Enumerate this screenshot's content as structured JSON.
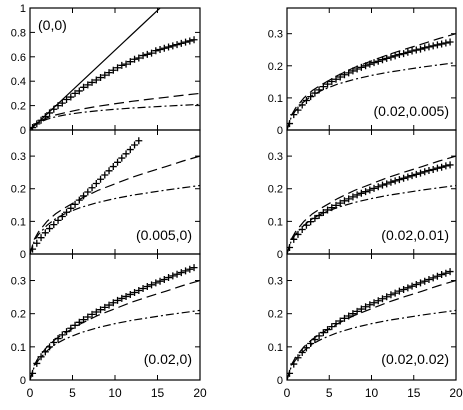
{
  "chart_data": [
    {
      "type": "line",
      "annotation": "(0,0)",
      "xlim": [
        0,
        20
      ],
      "ylim": [
        0,
        1.0
      ],
      "yticks": [
        0,
        0.2,
        0.4,
        0.6,
        0.8,
        1
      ],
      "ytick_labels": [
        "0",
        "0.2",
        "0.4",
        "0.6",
        "0.8",
        "1"
      ],
      "xticks": [
        0,
        5,
        10,
        15,
        20
      ],
      "xtick_labels": [],
      "series": [
        {
          "style": "solid",
          "x": [
            0,
            15.3
          ],
          "y": [
            0,
            1.0
          ]
        },
        {
          "style": "plus",
          "x": [
            0.3,
            0.8,
            1.3,
            1.8,
            2.3,
            2.8,
            3.3,
            3.8,
            4.3,
            4.8,
            5.3,
            5.8,
            6.3,
            6.8,
            7.3,
            7.8,
            8.3,
            8.8,
            9.3,
            9.8,
            10.3,
            10.8,
            11.3,
            11.8,
            12.3,
            12.8,
            13.3,
            13.8,
            14.3,
            14.8,
            15.3,
            15.8,
            16.3,
            16.8,
            17.3,
            17.8,
            18.3,
            18.8,
            19.3
          ],
          "y": [
            0.02,
            0.05,
            0.08,
            0.11,
            0.14,
            0.17,
            0.2,
            0.22,
            0.25,
            0.27,
            0.3,
            0.32,
            0.35,
            0.37,
            0.39,
            0.41,
            0.43,
            0.45,
            0.47,
            0.49,
            0.51,
            0.53,
            0.54,
            0.56,
            0.58,
            0.59,
            0.61,
            0.62,
            0.63,
            0.65,
            0.66,
            0.67,
            0.68,
            0.69,
            0.7,
            0.71,
            0.72,
            0.73,
            0.74
          ]
        },
        {
          "style": "dashed",
          "x": [
            0,
            0.5,
            1,
            2,
            3,
            4,
            5,
            6,
            8,
            10,
            12,
            14,
            16,
            18,
            20
          ],
          "y": [
            0,
            0.045,
            0.068,
            0.1,
            0.123,
            0.14,
            0.155,
            0.17,
            0.195,
            0.215,
            0.235,
            0.252,
            0.268,
            0.285,
            0.3
          ]
        },
        {
          "style": "dashdot",
          "x": [
            0,
            0.5,
            1,
            2,
            3,
            4,
            5,
            6,
            8,
            10,
            12,
            14,
            16,
            18,
            20
          ],
          "y": [
            0,
            0.04,
            0.06,
            0.088,
            0.108,
            0.122,
            0.133,
            0.143,
            0.158,
            0.17,
            0.18,
            0.188,
            0.196,
            0.203,
            0.21
          ]
        }
      ]
    },
    {
      "type": "line",
      "annotation": "(0.02,0.005)",
      "xlim": [
        0,
        20
      ],
      "ylim": [
        0,
        0.38
      ],
      "yticks": [
        0,
        0.1,
        0.2,
        0.3
      ],
      "ytick_labels": [
        "0",
        "0.1",
        "0.2",
        "0.3"
      ],
      "xticks": [
        0,
        5,
        10,
        15,
        20
      ],
      "xtick_labels": [],
      "series": [
        {
          "style": "plus",
          "x": [
            0.3,
            0.8,
            1.3,
            1.8,
            2.3,
            2.8,
            3.3,
            3.8,
            4.3,
            4.8,
            5.3,
            5.8,
            6.3,
            6.8,
            7.3,
            7.8,
            8.3,
            8.8,
            9.3,
            9.8,
            10.3,
            10.8,
            11.3,
            11.8,
            12.3,
            12.8,
            13.3,
            13.8,
            14.3,
            14.8,
            15.3,
            15.8,
            16.3,
            16.8,
            17.3,
            17.8,
            18.3,
            18.8,
            19.3
          ],
          "y": [
            0.02,
            0.048,
            0.062,
            0.078,
            0.092,
            0.104,
            0.115,
            0.125,
            0.135,
            0.143,
            0.151,
            0.158,
            0.165,
            0.172,
            0.178,
            0.184,
            0.19,
            0.195,
            0.2,
            0.205,
            0.21,
            0.214,
            0.219,
            0.223,
            0.227,
            0.231,
            0.235,
            0.238,
            0.242,
            0.246,
            0.249,
            0.252,
            0.256,
            0.259,
            0.262,
            0.265,
            0.268,
            0.271,
            0.274
          ]
        },
        {
          "style": "dashed",
          "x": [
            0,
            0.5,
            1,
            2,
            3,
            4,
            5,
            6,
            8,
            10,
            12,
            14,
            16,
            18,
            20
          ],
          "y": [
            0,
            0.045,
            0.068,
            0.1,
            0.123,
            0.14,
            0.155,
            0.17,
            0.195,
            0.215,
            0.235,
            0.252,
            0.268,
            0.285,
            0.3
          ]
        },
        {
          "style": "dashdot",
          "x": [
            0,
            0.5,
            1,
            2,
            3,
            4,
            5,
            6,
            8,
            10,
            12,
            14,
            16,
            18,
            20
          ],
          "y": [
            0,
            0.04,
            0.06,
            0.088,
            0.108,
            0.122,
            0.133,
            0.143,
            0.158,
            0.17,
            0.18,
            0.188,
            0.196,
            0.203,
            0.21
          ]
        }
      ]
    },
    {
      "type": "line",
      "annotation": "(0.005,0)",
      "xlim": [
        0,
        20
      ],
      "ylim": [
        0,
        0.38
      ],
      "yticks": [
        0,
        0.1,
        0.2,
        0.3
      ],
      "ytick_labels": [
        "0",
        "0.1",
        "0.2",
        "0.3"
      ],
      "xticks": [
        0,
        5,
        10,
        15,
        20
      ],
      "xtick_labels": [],
      "series": [
        {
          "style": "plus",
          "x": [
            0.3,
            0.8,
            1.3,
            1.8,
            2.3,
            2.8,
            3.3,
            3.8,
            4.3,
            4.8,
            5.3,
            5.8,
            6.3,
            6.8,
            7.3,
            7.8,
            8.3,
            8.8,
            9.3,
            9.8,
            10.3,
            10.8,
            11.3,
            11.8,
            12.3,
            12.8
          ],
          "y": [
            0.015,
            0.033,
            0.05,
            0.065,
            0.078,
            0.09,
            0.103,
            0.115,
            0.128,
            0.14,
            0.152,
            0.165,
            0.178,
            0.19,
            0.203,
            0.216,
            0.229,
            0.242,
            0.255,
            0.268,
            0.281,
            0.294,
            0.307,
            0.32,
            0.334,
            0.347
          ]
        },
        {
          "style": "dashed",
          "x": [
            0,
            0.5,
            1,
            2,
            3,
            4,
            5,
            6,
            8,
            10,
            12,
            14,
            16,
            18,
            20
          ],
          "y": [
            0,
            0.045,
            0.068,
            0.1,
            0.123,
            0.14,
            0.155,
            0.17,
            0.195,
            0.215,
            0.235,
            0.252,
            0.268,
            0.285,
            0.3
          ]
        },
        {
          "style": "dashdot",
          "x": [
            0,
            0.5,
            1,
            2,
            3,
            4,
            5,
            6,
            8,
            10,
            12,
            14,
            16,
            18,
            20
          ],
          "y": [
            0,
            0.04,
            0.06,
            0.088,
            0.108,
            0.122,
            0.133,
            0.143,
            0.158,
            0.17,
            0.18,
            0.188,
            0.196,
            0.203,
            0.21
          ]
        }
      ]
    },
    {
      "type": "line",
      "annotation": "(0.02,0.01)",
      "xlim": [
        0,
        20
      ],
      "ylim": [
        0,
        0.38
      ],
      "yticks": [
        0,
        0.1,
        0.2,
        0.3
      ],
      "ytick_labels": [
        "0",
        "0.1",
        "0.2",
        "0.3"
      ],
      "xticks": [
        0,
        5,
        10,
        15,
        20
      ],
      "xtick_labels": [],
      "series": [
        {
          "style": "plus",
          "x": [
            0.3,
            0.8,
            1.3,
            1.8,
            2.3,
            2.8,
            3.3,
            3.8,
            4.3,
            4.8,
            5.3,
            5.8,
            6.3,
            6.8,
            7.3,
            7.8,
            8.3,
            8.8,
            9.3,
            9.8,
            10.3,
            10.8,
            11.3,
            11.8,
            12.3,
            12.8,
            13.3,
            13.8,
            14.3,
            14.8,
            15.3,
            15.8,
            16.3,
            16.8,
            17.3,
            17.8,
            18.3,
            18.8,
            19.3
          ],
          "y": [
            0.02,
            0.045,
            0.06,
            0.075,
            0.088,
            0.099,
            0.109,
            0.118,
            0.127,
            0.135,
            0.142,
            0.149,
            0.156,
            0.163,
            0.169,
            0.175,
            0.181,
            0.186,
            0.191,
            0.196,
            0.201,
            0.206,
            0.211,
            0.215,
            0.22,
            0.224,
            0.228,
            0.232,
            0.236,
            0.24,
            0.244,
            0.248,
            0.252,
            0.256,
            0.259,
            0.263,
            0.266,
            0.27,
            0.273
          ]
        },
        {
          "style": "dashed",
          "x": [
            0,
            0.5,
            1,
            2,
            3,
            4,
            5,
            6,
            8,
            10,
            12,
            14,
            16,
            18,
            20
          ],
          "y": [
            0,
            0.045,
            0.068,
            0.1,
            0.123,
            0.14,
            0.155,
            0.17,
            0.195,
            0.215,
            0.235,
            0.252,
            0.268,
            0.285,
            0.3
          ]
        },
        {
          "style": "dashdot",
          "x": [
            0,
            0.5,
            1,
            2,
            3,
            4,
            5,
            6,
            8,
            10,
            12,
            14,
            16,
            18,
            20
          ],
          "y": [
            0,
            0.04,
            0.06,
            0.088,
            0.108,
            0.122,
            0.133,
            0.143,
            0.158,
            0.17,
            0.18,
            0.188,
            0.196,
            0.203,
            0.21
          ]
        }
      ]
    },
    {
      "type": "line",
      "annotation": "(0.02,0)",
      "xlim": [
        0,
        20
      ],
      "ylim": [
        0,
        0.38
      ],
      "yticks": [
        0,
        0.1,
        0.2,
        0.3
      ],
      "ytick_labels": [
        "0",
        "0.1",
        "0.2",
        "0.3"
      ],
      "xticks": [
        0,
        5,
        10,
        15,
        20
      ],
      "xtick_labels": [
        "0",
        "5",
        "10",
        "15",
        "20"
      ],
      "series": [
        {
          "style": "plus",
          "x": [
            0.3,
            0.8,
            1.3,
            1.8,
            2.3,
            2.8,
            3.3,
            3.8,
            4.3,
            4.8,
            5.3,
            5.8,
            6.3,
            6.8,
            7.3,
            7.8,
            8.3,
            8.8,
            9.3,
            9.8,
            10.3,
            10.8,
            11.3,
            11.8,
            12.3,
            12.8,
            13.3,
            13.8,
            14.3,
            14.8,
            15.3,
            15.8,
            16.3,
            16.8,
            17.3,
            17.8,
            18.3,
            18.8,
            19.3
          ],
          "y": [
            0.02,
            0.05,
            0.07,
            0.085,
            0.1,
            0.113,
            0.125,
            0.136,
            0.146,
            0.156,
            0.165,
            0.174,
            0.182,
            0.19,
            0.198,
            0.205,
            0.212,
            0.219,
            0.226,
            0.233,
            0.24,
            0.246,
            0.252,
            0.258,
            0.264,
            0.27,
            0.276,
            0.282,
            0.287,
            0.293,
            0.298,
            0.303,
            0.309,
            0.314,
            0.319,
            0.324,
            0.329,
            0.334,
            0.339
          ]
        },
        {
          "style": "dashed",
          "x": [
            0,
            0.5,
            1,
            2,
            3,
            4,
            5,
            6,
            8,
            10,
            12,
            14,
            16,
            18,
            20
          ],
          "y": [
            0,
            0.045,
            0.068,
            0.1,
            0.123,
            0.14,
            0.155,
            0.17,
            0.195,
            0.215,
            0.235,
            0.252,
            0.268,
            0.285,
            0.3
          ]
        },
        {
          "style": "dashdot",
          "x": [
            0,
            0.5,
            1,
            2,
            3,
            4,
            5,
            6,
            8,
            10,
            12,
            14,
            16,
            18,
            20
          ],
          "y": [
            0,
            0.04,
            0.06,
            0.088,
            0.108,
            0.122,
            0.133,
            0.143,
            0.158,
            0.17,
            0.18,
            0.188,
            0.196,
            0.203,
            0.21
          ]
        }
      ]
    },
    {
      "type": "line",
      "annotation": "(0.02,0.02)",
      "xlim": [
        0,
        20
      ],
      "ylim": [
        0,
        0.38
      ],
      "yticks": [
        0,
        0.1,
        0.2,
        0.3
      ],
      "ytick_labels": [
        "0",
        "0.1",
        "0.2",
        "0.3"
      ],
      "xticks": [
        0,
        5,
        10,
        15,
        20
      ],
      "xtick_labels": [
        "0",
        "5",
        "10",
        "15",
        "20"
      ],
      "series": [
        {
          "style": "plus",
          "x": [
            0.3,
            0.8,
            1.3,
            1.8,
            2.3,
            2.8,
            3.3,
            3.8,
            4.3,
            4.8,
            5.3,
            5.8,
            6.3,
            6.8,
            7.3,
            7.8,
            8.3,
            8.8,
            9.3,
            9.8,
            10.3,
            10.8,
            11.3,
            11.8,
            12.3,
            12.8,
            13.3,
            13.8,
            14.3,
            14.8,
            15.3,
            15.8,
            16.3,
            16.8,
            17.3,
            17.8,
            18.3,
            18.8,
            19.3
          ],
          "y": [
            0.02,
            0.048,
            0.067,
            0.083,
            0.097,
            0.11,
            0.122,
            0.133,
            0.143,
            0.152,
            0.161,
            0.17,
            0.178,
            0.186,
            0.193,
            0.2,
            0.207,
            0.214,
            0.221,
            0.227,
            0.233,
            0.239,
            0.245,
            0.251,
            0.257,
            0.262,
            0.268,
            0.273,
            0.278,
            0.283,
            0.288,
            0.293,
            0.298,
            0.303,
            0.308,
            0.313,
            0.318,
            0.322,
            0.327
          ]
        },
        {
          "style": "dashed",
          "x": [
            0,
            0.5,
            1,
            2,
            3,
            4,
            5,
            6,
            8,
            10,
            12,
            14,
            16,
            18,
            20
          ],
          "y": [
            0,
            0.045,
            0.068,
            0.1,
            0.123,
            0.14,
            0.155,
            0.17,
            0.195,
            0.215,
            0.235,
            0.252,
            0.268,
            0.285,
            0.3
          ]
        },
        {
          "style": "dashdot",
          "x": [
            0,
            0.5,
            1,
            2,
            3,
            4,
            5,
            6,
            8,
            10,
            12,
            14,
            16,
            18,
            20
          ],
          "y": [
            0,
            0.04,
            0.06,
            0.088,
            0.108,
            0.122,
            0.133,
            0.143,
            0.158,
            0.17,
            0.18,
            0.188,
            0.196,
            0.203,
            0.21
          ]
        }
      ]
    }
  ]
}
